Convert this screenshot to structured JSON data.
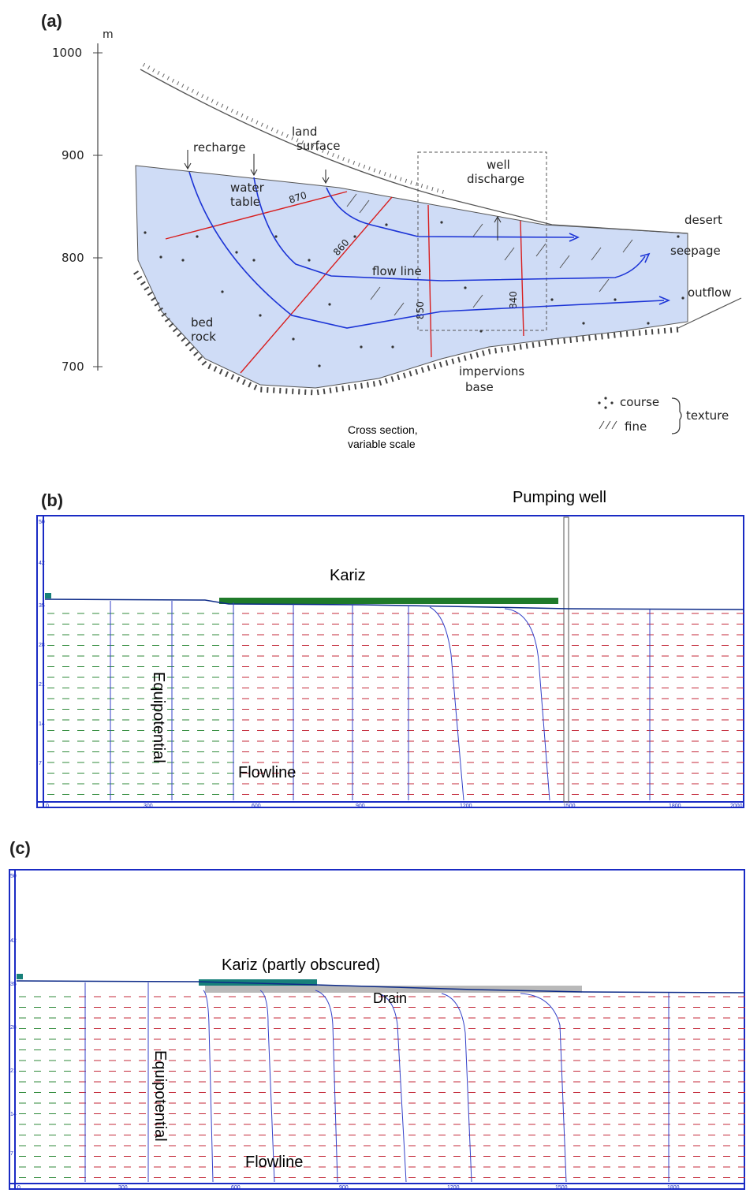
{
  "panel_a": {
    "letter": "(a)",
    "axis": {
      "unit": "m",
      "ticks": [
        "1000",
        "900",
        "800",
        "700"
      ]
    },
    "labels": {
      "land": "land",
      "surface": "surface",
      "recharge": "recharge",
      "water": "water",
      "table": "table",
      "well": "well",
      "discharge": "discharge",
      "desert": "desert",
      "seepage": "seepage",
      "outflow": "outflow",
      "flow_line": "flow line",
      "bed": "bed",
      "rock": "rock",
      "impervions": "impervions",
      "base": "base"
    },
    "contours": [
      "870",
      "860",
      "850",
      "840"
    ],
    "legend": {
      "course": "course",
      "fine": "fine",
      "texture": "texture"
    },
    "caption_line1": "Cross section,",
    "caption_line2": "variable scale"
  },
  "panel_b": {
    "letter": "(b)",
    "pumping_well": "Pumping well",
    "kariz": "Kariz",
    "equipotential": "Equipotential",
    "flowline": "Flowline",
    "x_ticks": [
      "0",
      "300",
      "600",
      "900",
      "1200",
      "1500",
      "1800",
      "2000"
    ],
    "y_ticks": [
      "50",
      "42",
      "35",
      "28",
      "21",
      "14",
      "7"
    ]
  },
  "panel_c": {
    "letter": "(c)",
    "kariz": "Kariz (partly obscured)",
    "drain": "Drain",
    "equipotential": "Equipotential",
    "flowline": "Flowline",
    "x_ticks": [
      "0",
      "300",
      "600",
      "900",
      "1200",
      "1500",
      "1800"
    ],
    "y_ticks": [
      "50",
      "42",
      "35",
      "28",
      "21",
      "14",
      "7"
    ]
  },
  "colors": {
    "aquifer": "#cfdcf6",
    "flowline": "#1c34d6",
    "equipotential": "#d81e1e",
    "frame": "#1a2bc4",
    "kariz_b": "#1f7a2a",
    "kariz_c": "#17807a",
    "drain": "#b9b9b9"
  }
}
